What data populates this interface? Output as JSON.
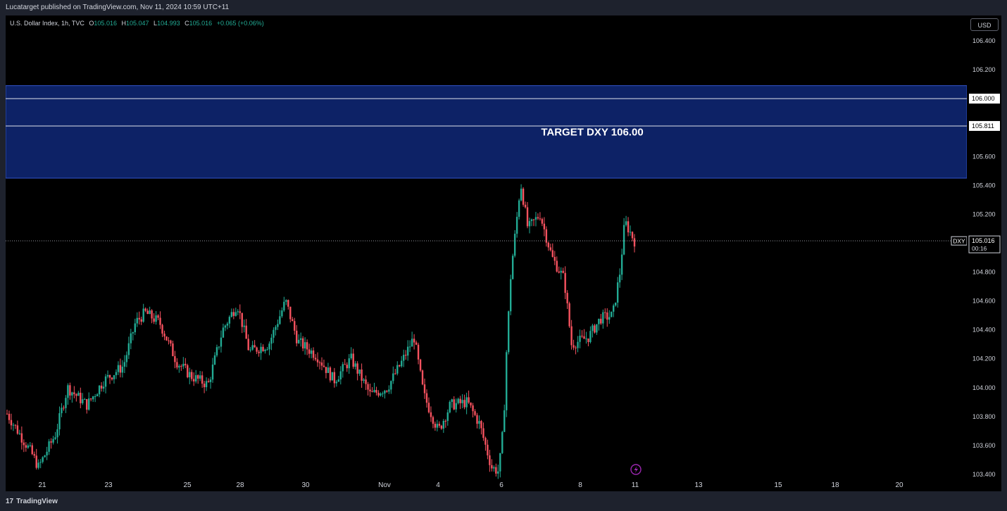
{
  "header": {
    "published_by": "Lucatarget published on TradingView.com, Nov 11, 2024 10:59 UTC+11"
  },
  "footer": {
    "brand": "TradingView",
    "brand_mark": "17"
  },
  "currency_button": "USD",
  "legend": {
    "symbol": "U.S. Dollar Index, 1h, TVC",
    "o_label": "O",
    "o_value": "105.016",
    "h_label": "H",
    "h_value": "105.047",
    "l_label": "L",
    "l_value": "104.993",
    "c_label": "C",
    "c_value": "105.016",
    "change": "+0.065 (+0.06%)"
  },
  "colors": {
    "up": "#22ab94",
    "down": "#f7525f",
    "zone_fill": "#0d2266",
    "zone_border": "#3355cc",
    "background": "#000000",
    "lightning_icon": "#9c27b0"
  },
  "chart_data": {
    "type": "candlestick",
    "title": "",
    "symbol": "DXY",
    "timeframe": "1h",
    "ylim": [
      103.4,
      106.4
    ],
    "y_ticks": [
      "103.400",
      "103.600",
      "103.800",
      "104.000",
      "104.200",
      "104.400",
      "104.600",
      "104.800",
      "105.200",
      "105.400",
      "105.600",
      "106.200",
      "106.400"
    ],
    "x_ticks": [
      "21",
      "23",
      "25",
      "28",
      "30",
      "Nov",
      "4",
      "6",
      "8",
      "11",
      "13",
      "15",
      "18",
      "20"
    ],
    "price_labels": [
      {
        "text": "106.000",
        "value": 106.0
      },
      {
        "text": "105.811",
        "value": 105.811
      }
    ],
    "last_price": {
      "symbol": "DXY",
      "value": 105.016,
      "text": "105.016",
      "countdown": "00:16"
    },
    "target_zone": {
      "label": "TARGET DXY 106.00",
      "top": 106.09,
      "bottom": 105.45
    },
    "horizontal_lines": [
      106.0,
      105.811
    ],
    "price_path": [
      {
        "x": 0.0,
        "y": 103.82
      },
      {
        "x": 1.0,
        "y": 103.55
      },
      {
        "x": 1.3,
        "y": 103.45
      },
      {
        "x": 2.0,
        "y": 103.68
      },
      {
        "x": 2.5,
        "y": 104.0
      },
      {
        "x": 3.3,
        "y": 103.88
      },
      {
        "x": 4.0,
        "y": 104.05
      },
      {
        "x": 4.8,
        "y": 104.15
      },
      {
        "x": 5.3,
        "y": 104.45
      },
      {
        "x": 5.7,
        "y": 104.52
      },
      {
        "x": 6.3,
        "y": 104.45
      },
      {
        "x": 7.0,
        "y": 104.18
      },
      {
        "x": 7.6,
        "y": 104.08
      },
      {
        "x": 8.3,
        "y": 104.02
      },
      {
        "x": 8.9,
        "y": 104.4
      },
      {
        "x": 9.5,
        "y": 104.58
      },
      {
        "x": 10.0,
        "y": 104.25
      },
      {
        "x": 10.8,
        "y": 104.3
      },
      {
        "x": 11.5,
        "y": 104.6
      },
      {
        "x": 12.0,
        "y": 104.32
      },
      {
        "x": 12.8,
        "y": 104.22
      },
      {
        "x": 13.5,
        "y": 104.05
      },
      {
        "x": 14.2,
        "y": 104.2
      },
      {
        "x": 15.0,
        "y": 103.95
      },
      {
        "x": 15.7,
        "y": 104.0
      },
      {
        "x": 16.3,
        "y": 104.18
      },
      {
        "x": 16.8,
        "y": 104.35
      },
      {
        "x": 17.2,
        "y": 103.95
      },
      {
        "x": 17.8,
        "y": 103.7
      },
      {
        "x": 18.3,
        "y": 103.88
      },
      {
        "x": 19.0,
        "y": 103.9
      },
      {
        "x": 19.5,
        "y": 103.75
      },
      {
        "x": 20.0,
        "y": 103.45
      },
      {
        "x": 20.3,
        "y": 103.42
      },
      {
        "x": 20.5,
        "y": 103.75
      },
      {
        "x": 20.6,
        "y": 104.2
      },
      {
        "x": 20.8,
        "y": 104.8
      },
      {
        "x": 21.0,
        "y": 105.1
      },
      {
        "x": 21.2,
        "y": 105.42
      },
      {
        "x": 21.5,
        "y": 105.1
      },
      {
        "x": 22.0,
        "y": 105.2
      },
      {
        "x": 22.5,
        "y": 104.9
      },
      {
        "x": 23.0,
        "y": 104.75
      },
      {
        "x": 23.3,
        "y": 104.3
      },
      {
        "x": 24.0,
        "y": 104.35
      },
      {
        "x": 24.5,
        "y": 104.48
      },
      {
        "x": 25.0,
        "y": 104.5
      },
      {
        "x": 25.3,
        "y": 104.8
      },
      {
        "x": 25.5,
        "y": 105.15
      },
      {
        "x": 25.9,
        "y": 105.016
      }
    ]
  }
}
